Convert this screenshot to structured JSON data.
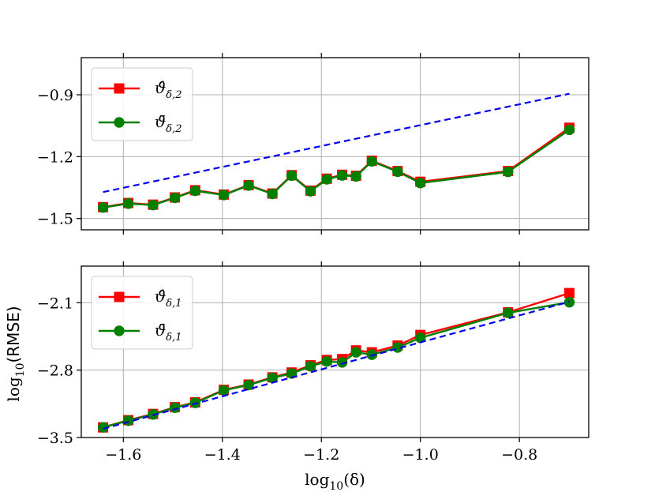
{
  "chart_data": [
    {
      "type": "line",
      "xlabel": "",
      "ylabel": "",
      "xlim": [
        -1.685,
        -0.66
      ],
      "ylim": [
        -1.555,
        -0.72
      ],
      "xticks": [
        -1.6,
        -1.4,
        -1.2,
        -1.0,
        -0.8
      ],
      "yticks": [
        -1.5,
        -1.2,
        -0.9
      ],
      "ytick_labels": [
        "−1.5",
        "−1.2",
        "−0.9"
      ],
      "grid": true,
      "legend_position": "upper-left",
      "series": [
        {
          "name": "ϑ̂",
          "sub": "δ,2",
          "color": "#ff0000",
          "marker": "square",
          "x": [
            -1.641,
            -1.59,
            -1.54,
            -1.496,
            -1.455,
            -1.397,
            -1.347,
            -1.299,
            -1.26,
            -1.222,
            -1.189,
            -1.158,
            -1.13,
            -1.098,
            -1.046,
            -1.0,
            -0.823,
            -0.699
          ],
          "y": [
            -1.445,
            -1.425,
            -1.433,
            -1.398,
            -1.363,
            -1.384,
            -1.338,
            -1.379,
            -1.29,
            -1.365,
            -1.307,
            -1.288,
            -1.293,
            -1.22,
            -1.27,
            -1.322,
            -1.27,
            -1.06
          ]
        },
        {
          "name": "ϑ̄",
          "sub": "δ,2",
          "color": "#008000",
          "marker": "circle",
          "x": [
            -1.641,
            -1.59,
            -1.54,
            -1.496,
            -1.455,
            -1.397,
            -1.347,
            -1.299,
            -1.26,
            -1.222,
            -1.189,
            -1.158,
            -1.13,
            -1.098,
            -1.046,
            -1.0,
            -0.823,
            -0.699
          ],
          "y": [
            -1.447,
            -1.428,
            -1.435,
            -1.4,
            -1.366,
            -1.386,
            -1.34,
            -1.381,
            -1.292,
            -1.368,
            -1.31,
            -1.291,
            -1.296,
            -1.223,
            -1.273,
            -1.328,
            -1.274,
            -1.07
          ]
        },
        {
          "name": "",
          "color": "#0000ee",
          "dashed": true,
          "x": [
            -1.641,
            -0.699
          ],
          "y": [
            -1.372,
            -0.895
          ]
        }
      ]
    },
    {
      "type": "line",
      "xlabel": "log",
      "xlabel_sub": "10",
      "xlabel_arg": "(δ)",
      "ylabel": "log",
      "ylabel_sub": "10",
      "ylabel_arg": "(RMSE)",
      "xlim": [
        -1.685,
        -0.66
      ],
      "ylim": [
        -3.5,
        -1.72
      ],
      "xticks": [
        -1.6,
        -1.4,
        -1.2,
        -1.0,
        -0.8
      ],
      "xtick_labels": [
        "−1.6",
        "−1.4",
        "−1.2",
        "−1.0",
        "−0.8"
      ],
      "yticks": [
        -3.5,
        -2.8,
        -2.1
      ],
      "ytick_labels": [
        "−3.5",
        "−2.8",
        "−2.1"
      ],
      "grid": true,
      "legend_position": "upper-left",
      "series": [
        {
          "name": "ϑ̂",
          "sub": "δ,1",
          "color": "#ff0000",
          "marker": "square",
          "x": [
            -1.641,
            -1.59,
            -1.54,
            -1.496,
            -1.455,
            -1.397,
            -1.347,
            -1.299,
            -1.26,
            -1.222,
            -1.189,
            -1.158,
            -1.13,
            -1.098,
            -1.046,
            -1.0,
            -0.823,
            -0.699
          ],
          "y": [
            -3.395,
            -3.32,
            -3.255,
            -3.185,
            -3.135,
            -3.005,
            -2.95,
            -2.875,
            -2.825,
            -2.75,
            -2.695,
            -2.685,
            -2.595,
            -2.615,
            -2.545,
            -2.435,
            -2.2,
            -2.0
          ]
        },
        {
          "name": "ϑ̄",
          "sub": "δ,1",
          "color": "#008000",
          "marker": "circle",
          "x": [
            -1.641,
            -1.59,
            -1.54,
            -1.496,
            -1.455,
            -1.397,
            -1.347,
            -1.299,
            -1.26,
            -1.222,
            -1.189,
            -1.158,
            -1.13,
            -1.098,
            -1.046,
            -1.0,
            -0.823,
            -0.699
          ],
          "y": [
            -3.395,
            -3.325,
            -3.26,
            -3.19,
            -3.14,
            -3.01,
            -2.955,
            -2.88,
            -2.835,
            -2.76,
            -2.71,
            -2.72,
            -2.615,
            -2.64,
            -2.565,
            -2.465,
            -2.205,
            -2.095
          ]
        },
        {
          "name": "",
          "color": "#0000ee",
          "dashed": true,
          "x": [
            -1.641,
            -0.699
          ],
          "y": [
            -3.41,
            -2.09
          ]
        }
      ]
    }
  ]
}
